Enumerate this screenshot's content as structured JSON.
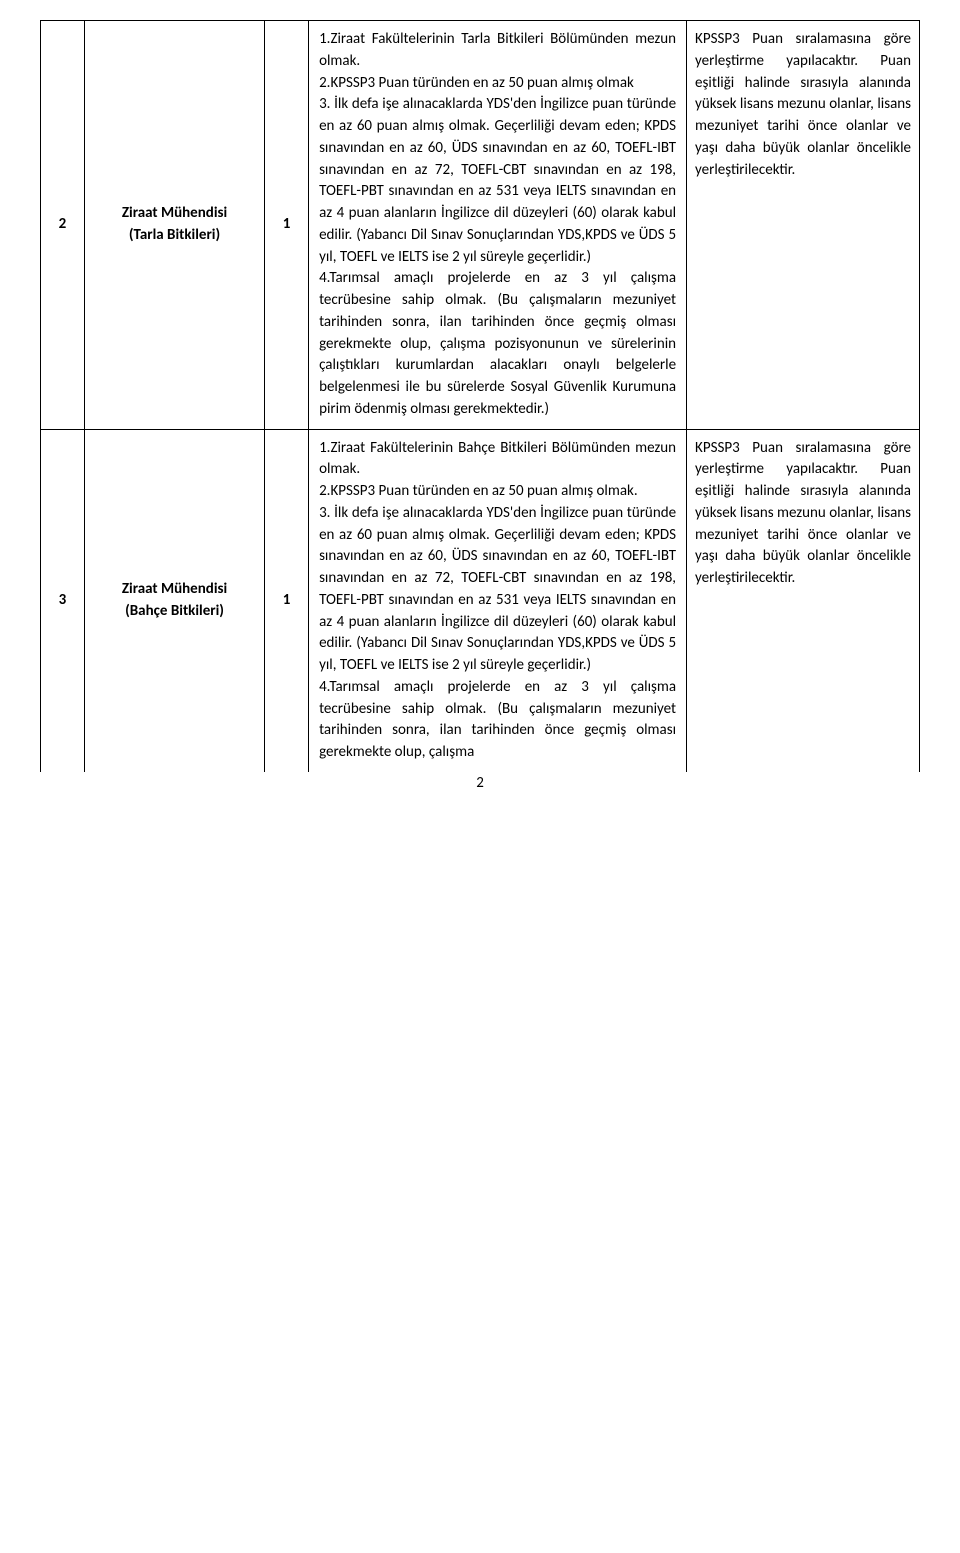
{
  "rows": [
    {
      "num": "2",
      "title_line1": "Ziraat Mühendisi",
      "title_line2": "(Tarla Bitkileri)",
      "count": "1",
      "req": "1.Ziraat Fakültelerinin Tarla Bitkileri Bölümünden mezun olmak.\n2.KPSSP3 Puan türünden en az 50 puan almış olmak\n3. İlk defa işe alınacaklarda YDS'den İngilizce puan türünde en az 60 puan almış olmak. Geçerliliği devam eden; KPDS sınavından en az 60, ÜDS sınavından en az 60, TOEFL-IBT sınavından en az 72, TOEFL-CBT sınavından en az 198, TOEFL-PBT sınavından en az 531 veya IELTS sınavından en az 4 puan alanların İngilizce dil düzeyleri (60) olarak kabul edilir. (Yabancı Dil Sınav Sonuçlarından YDS,KPDS ve ÜDS 5 yıl, TOEFL ve IELTS ise 2 yıl süreyle geçerlidir.)\n4.Tarımsal amaçlı projelerde en az 3 yıl çalışma tecrübesine sahip olmak. (Bu çalışmaların mezuniyet tarihinden sonra, ilan tarihinden önce geçmiş olması gerekmekte olup, çalışma pozisyonunun ve sürelerinin çalıştıkları kurumlardan alacakları onaylı belgelerle belgelenmesi ile bu sürelerde Sosyal Güvenlik Kurumuna pirim ödenmiş olması gerekmektedir.)",
      "note": "KPSSP3 Puan sıralamasına göre yerleştirme yapılacaktır. Puan eşitliği halinde sırasıyla alanında yüksek lisans mezunu olanlar, lisans mezuniyet tarihi önce olanlar ve yaşı daha büyük olanlar öncelikle yerleştirilecektir."
    },
    {
      "num": "3",
      "title_line1": "Ziraat Mühendisi",
      "title_line2": "(Bahçe Bitkileri)",
      "count": "1",
      "req": "1.Ziraat Fakültelerinin Bahçe Bitkileri Bölümünden mezun olmak.\n2.KPSSP3 Puan türünden en az 50 puan almış olmak.\n3. İlk defa işe alınacaklarda YDS'den İngilizce puan türünde en az 60 puan almış olmak. Geçerliliği devam eden; KPDS sınavından en az 60, ÜDS sınavından en az 60, TOEFL-IBT sınavından en az 72, TOEFL-CBT sınavından en az 198, TOEFL-PBT sınavından en az 531 veya IELTS sınavından en az 4 puan alanların İngilizce dil düzeyleri (60) olarak kabul edilir. (Yabancı Dil Sınav Sonuçlarından YDS,KPDS ve ÜDS 5 yıl, TOEFL ve IELTS ise 2 yıl süreyle geçerlidir.)\n4.Tarımsal amaçlı projelerde en az 3 yıl çalışma tecrübesine sahip olmak. (Bu çalışmaların mezuniyet tarihinden sonra, ilan tarihinden önce geçmiş olması gerekmekte olup, çalışma",
      "note": "KPSSP3 Puan sıralamasına göre yerleştirme yapılacaktır. Puan eşitliği halinde sırasıyla alanında yüksek lisans mezunu olanlar, lisans mezuniyet tarihi önce olanlar ve yaşı daha büyük olanlar öncelikle yerleştirilecektir."
    }
  ],
  "page_number": "2"
}
